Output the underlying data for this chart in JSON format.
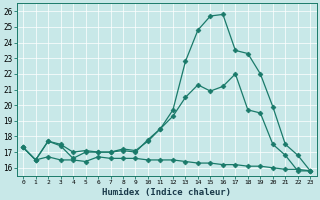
{
  "xlabel": "Humidex (Indice chaleur)",
  "bg_color": "#c8e8e8",
  "line_color": "#1a7a6a",
  "ylim": [
    15.5,
    26.5
  ],
  "xlim": [
    -0.5,
    23.5
  ],
  "yticks": [
    16,
    17,
    18,
    19,
    20,
    21,
    22,
    23,
    24,
    25,
    26
  ],
  "xticks": [
    0,
    1,
    2,
    3,
    4,
    5,
    6,
    7,
    8,
    9,
    10,
    11,
    12,
    13,
    14,
    15,
    16,
    17,
    18,
    19,
    20,
    21,
    22,
    23
  ],
  "line1_x": [
    0,
    1,
    2,
    3,
    4,
    5,
    6,
    7,
    8,
    9,
    10,
    11,
    12,
    13,
    14,
    15,
    16,
    17,
    18,
    19,
    20,
    21,
    22,
    23
  ],
  "line1_y": [
    17.3,
    16.5,
    17.7,
    17.5,
    17.0,
    17.1,
    17.0,
    17.0,
    17.2,
    17.1,
    17.7,
    18.5,
    19.7,
    22.8,
    24.8,
    25.7,
    25.8,
    23.5,
    23.3,
    22.0,
    19.9,
    17.5,
    16.8,
    15.8
  ],
  "line2_x": [
    0,
    1,
    2,
    3,
    4,
    5,
    6,
    7,
    8,
    9,
    10,
    11,
    12,
    13,
    14,
    15,
    16,
    17,
    18,
    19,
    20,
    21,
    22,
    23
  ],
  "line2_y": [
    17.3,
    16.5,
    17.7,
    17.4,
    16.6,
    17.0,
    17.0,
    17.0,
    17.1,
    17.0,
    17.8,
    18.5,
    19.3,
    20.5,
    21.3,
    20.9,
    21.2,
    22.0,
    19.7,
    19.5,
    17.5,
    16.8,
    15.8,
    15.8
  ],
  "line3_x": [
    0,
    1,
    2,
    3,
    4,
    5,
    6,
    7,
    8,
    9,
    10,
    11,
    12,
    13,
    14,
    15,
    16,
    17,
    18,
    19,
    20,
    21,
    22,
    23
  ],
  "line3_y": [
    17.3,
    16.5,
    16.7,
    16.5,
    16.5,
    16.4,
    16.7,
    16.6,
    16.6,
    16.6,
    16.5,
    16.5,
    16.5,
    16.4,
    16.3,
    16.3,
    16.2,
    16.2,
    16.1,
    16.1,
    16.0,
    15.9,
    15.9,
    15.8
  ]
}
